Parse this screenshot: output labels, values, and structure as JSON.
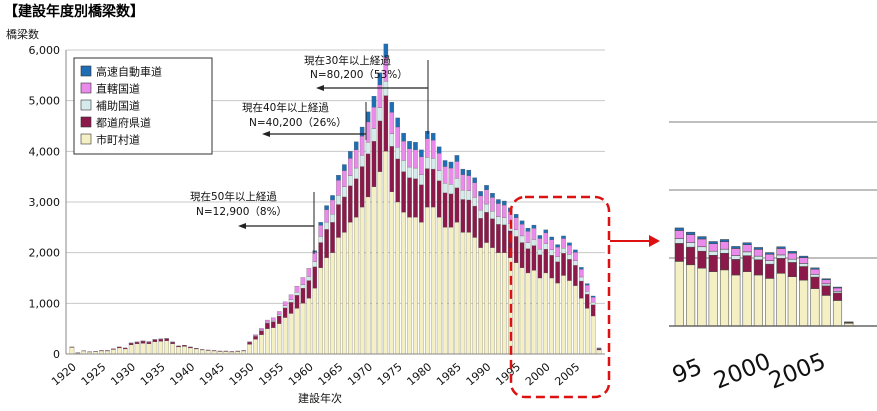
{
  "chart_data": {
    "type": "bar",
    "stacked": true,
    "title": "【建設年度別橋梁数】",
    "ylabel": "橋梁数",
    "xlabel": "建設年次",
    "ylim": [
      0,
      6000
    ],
    "yticks": [
      "0",
      "1,000",
      "2,000",
      "3,000",
      "4,000",
      "5,000",
      "6,000"
    ],
    "xticks": [
      "1920",
      "1925",
      "1930",
      "1935",
      "1940",
      "1945",
      "1950",
      "1955",
      "1960",
      "1965",
      "1970",
      "1975",
      "1980",
      "1985",
      "1990",
      "1995",
      "2000",
      "2005"
    ],
    "grid": true,
    "legend_position": "top-left",
    "x": [
      1920,
      1921,
      1922,
      1923,
      1924,
      1925,
      1926,
      1927,
      1928,
      1929,
      1930,
      1931,
      1932,
      1933,
      1934,
      1935,
      1936,
      1937,
      1938,
      1939,
      1940,
      1941,
      1942,
      1943,
      1944,
      1945,
      1946,
      1947,
      1948,
      1949,
      1950,
      1951,
      1952,
      1953,
      1954,
      1955,
      1956,
      1957,
      1958,
      1959,
      1960,
      1961,
      1962,
      1963,
      1964,
      1965,
      1966,
      1967,
      1968,
      1969,
      1970,
      1971,
      1972,
      1973,
      1974,
      1975,
      1976,
      1977,
      1978,
      1979,
      1980,
      1981,
      1982,
      1983,
      1984,
      1985,
      1986,
      1987,
      1988,
      1989,
      1990,
      1991,
      1992,
      1993,
      1994,
      1995,
      1996,
      1997,
      1998,
      1999,
      2000,
      2001,
      2002,
      2003,
      2004,
      2005,
      2006,
      2007,
      2008,
      2009
    ],
    "series": [
      {
        "name": "市町村道",
        "color": "#f4f0c4",
        "values": [
          130,
          20,
          60,
          40,
          50,
          60,
          60,
          90,
          120,
          100,
          180,
          200,
          210,
          200,
          240,
          250,
          260,
          200,
          140,
          150,
          120,
          100,
          80,
          70,
          60,
          50,
          50,
          40,
          50,
          60,
          190,
          290,
          380,
          500,
          520,
          600,
          720,
          800,
          900,
          1000,
          1100,
          1300,
          1700,
          1900,
          2000,
          2300,
          2400,
          2600,
          2700,
          2900,
          3100,
          3300,
          3600,
          4000,
          3200,
          3000,
          2800,
          2700,
          2700,
          2600,
          2900,
          2900,
          2700,
          2500,
          2500,
          2600,
          2400,
          2400,
          2300,
          2100,
          2200,
          2100,
          2000,
          2000,
          1900,
          1800,
          1700,
          1600,
          1650,
          1500,
          1600,
          1500,
          1400,
          1550,
          1450,
          1350,
          1100,
          900,
          750,
          80
        ]
      },
      {
        "name": "都道府県道",
        "color": "#8b1a4a",
        "values": [
          10,
          5,
          5,
          5,
          5,
          10,
          10,
          15,
          20,
          20,
          30,
          30,
          40,
          35,
          40,
          40,
          40,
          30,
          20,
          25,
          20,
          15,
          10,
          10,
          10,
          10,
          10,
          10,
          10,
          10,
          40,
          60,
          80,
          110,
          120,
          150,
          190,
          220,
          260,
          300,
          350,
          420,
          500,
          560,
          600,
          650,
          700,
          720,
          760,
          800,
          850,
          900,
          1000,
          1100,
          900,
          850,
          800,
          780,
          760,
          740,
          760,
          750,
          720,
          680,
          660,
          680,
          650,
          640,
          620,
          580,
          600,
          570,
          560,
          550,
          530,
          520,
          500,
          480,
          490,
          460,
          470,
          450,
          420,
          440,
          420,
          400,
          340,
          280,
          220,
          20
        ]
      },
      {
        "name": "補助国道",
        "color": "#d5eaea",
        "values": [
          0,
          0,
          0,
          0,
          0,
          0,
          0,
          0,
          0,
          0,
          5,
          5,
          5,
          5,
          5,
          5,
          5,
          5,
          0,
          0,
          0,
          0,
          0,
          0,
          0,
          0,
          0,
          0,
          0,
          0,
          5,
          10,
          15,
          20,
          25,
          30,
          40,
          50,
          60,
          70,
          80,
          100,
          120,
          140,
          160,
          180,
          200,
          200,
          210,
          220,
          230,
          250,
          260,
          280,
          250,
          230,
          220,
          210,
          210,
          200,
          220,
          210,
          200,
          190,
          190,
          190,
          180,
          180,
          170,
          160,
          160,
          150,
          150,
          140,
          140,
          130,
          130,
          120,
          120,
          110,
          110,
          105,
          100,
          100,
          95,
          90,
          80,
          60,
          50,
          5
        ]
      },
      {
        "name": "直轄国道",
        "color": "#ea8aea",
        "values": [
          0,
          0,
          0,
          0,
          0,
          0,
          0,
          0,
          0,
          0,
          5,
          5,
          5,
          5,
          5,
          5,
          5,
          5,
          0,
          0,
          0,
          0,
          0,
          0,
          0,
          0,
          0,
          0,
          0,
          0,
          10,
          20,
          30,
          40,
          50,
          60,
          80,
          100,
          120,
          140,
          160,
          190,
          220,
          250,
          280,
          300,
          320,
          340,
          360,
          380,
          400,
          420,
          450,
          480,
          420,
          400,
          380,
          360,
          360,
          350,
          370,
          360,
          340,
          330,
          320,
          330,
          310,
          300,
          290,
          280,
          280,
          270,
          260,
          250,
          240,
          240,
          230,
          220,
          220,
          210,
          210,
          200,
          190,
          190,
          180,
          170,
          150,
          120,
          100,
          10
        ]
      },
      {
        "name": "高速自動車道",
        "color": "#1f6db5",
        "values": [
          0,
          0,
          0,
          0,
          0,
          0,
          0,
          0,
          0,
          0,
          0,
          0,
          0,
          0,
          0,
          0,
          0,
          0,
          0,
          0,
          0,
          0,
          0,
          0,
          0,
          0,
          0,
          0,
          0,
          0,
          0,
          0,
          0,
          0,
          0,
          0,
          0,
          0,
          0,
          0,
          0,
          30,
          60,
          80,
          90,
          100,
          120,
          140,
          160,
          180,
          200,
          220,
          240,
          260,
          200,
          180,
          160,
          150,
          150,
          140,
          150,
          140,
          130,
          120,
          120,
          120,
          110,
          110,
          100,
          90,
          90,
          85,
          80,
          80,
          75,
          70,
          70,
          65,
          65,
          60,
          60,
          55,
          50,
          50,
          50,
          45,
          40,
          30,
          25,
          5
        ]
      }
    ],
    "annotations": [
      {
        "line1": "現在30年以上経過",
        "line2": "N=80,200（53%）"
      },
      {
        "line1": "現在40年以上経過",
        "line2": "N=40,200（26%）"
      },
      {
        "line1": "現在50年以上経過",
        "line2": "N=12,900（8%）"
      }
    ],
    "zoom_xticks": [
      "95",
      "2000",
      "2005"
    ],
    "highlight_color": "#dd1111"
  }
}
